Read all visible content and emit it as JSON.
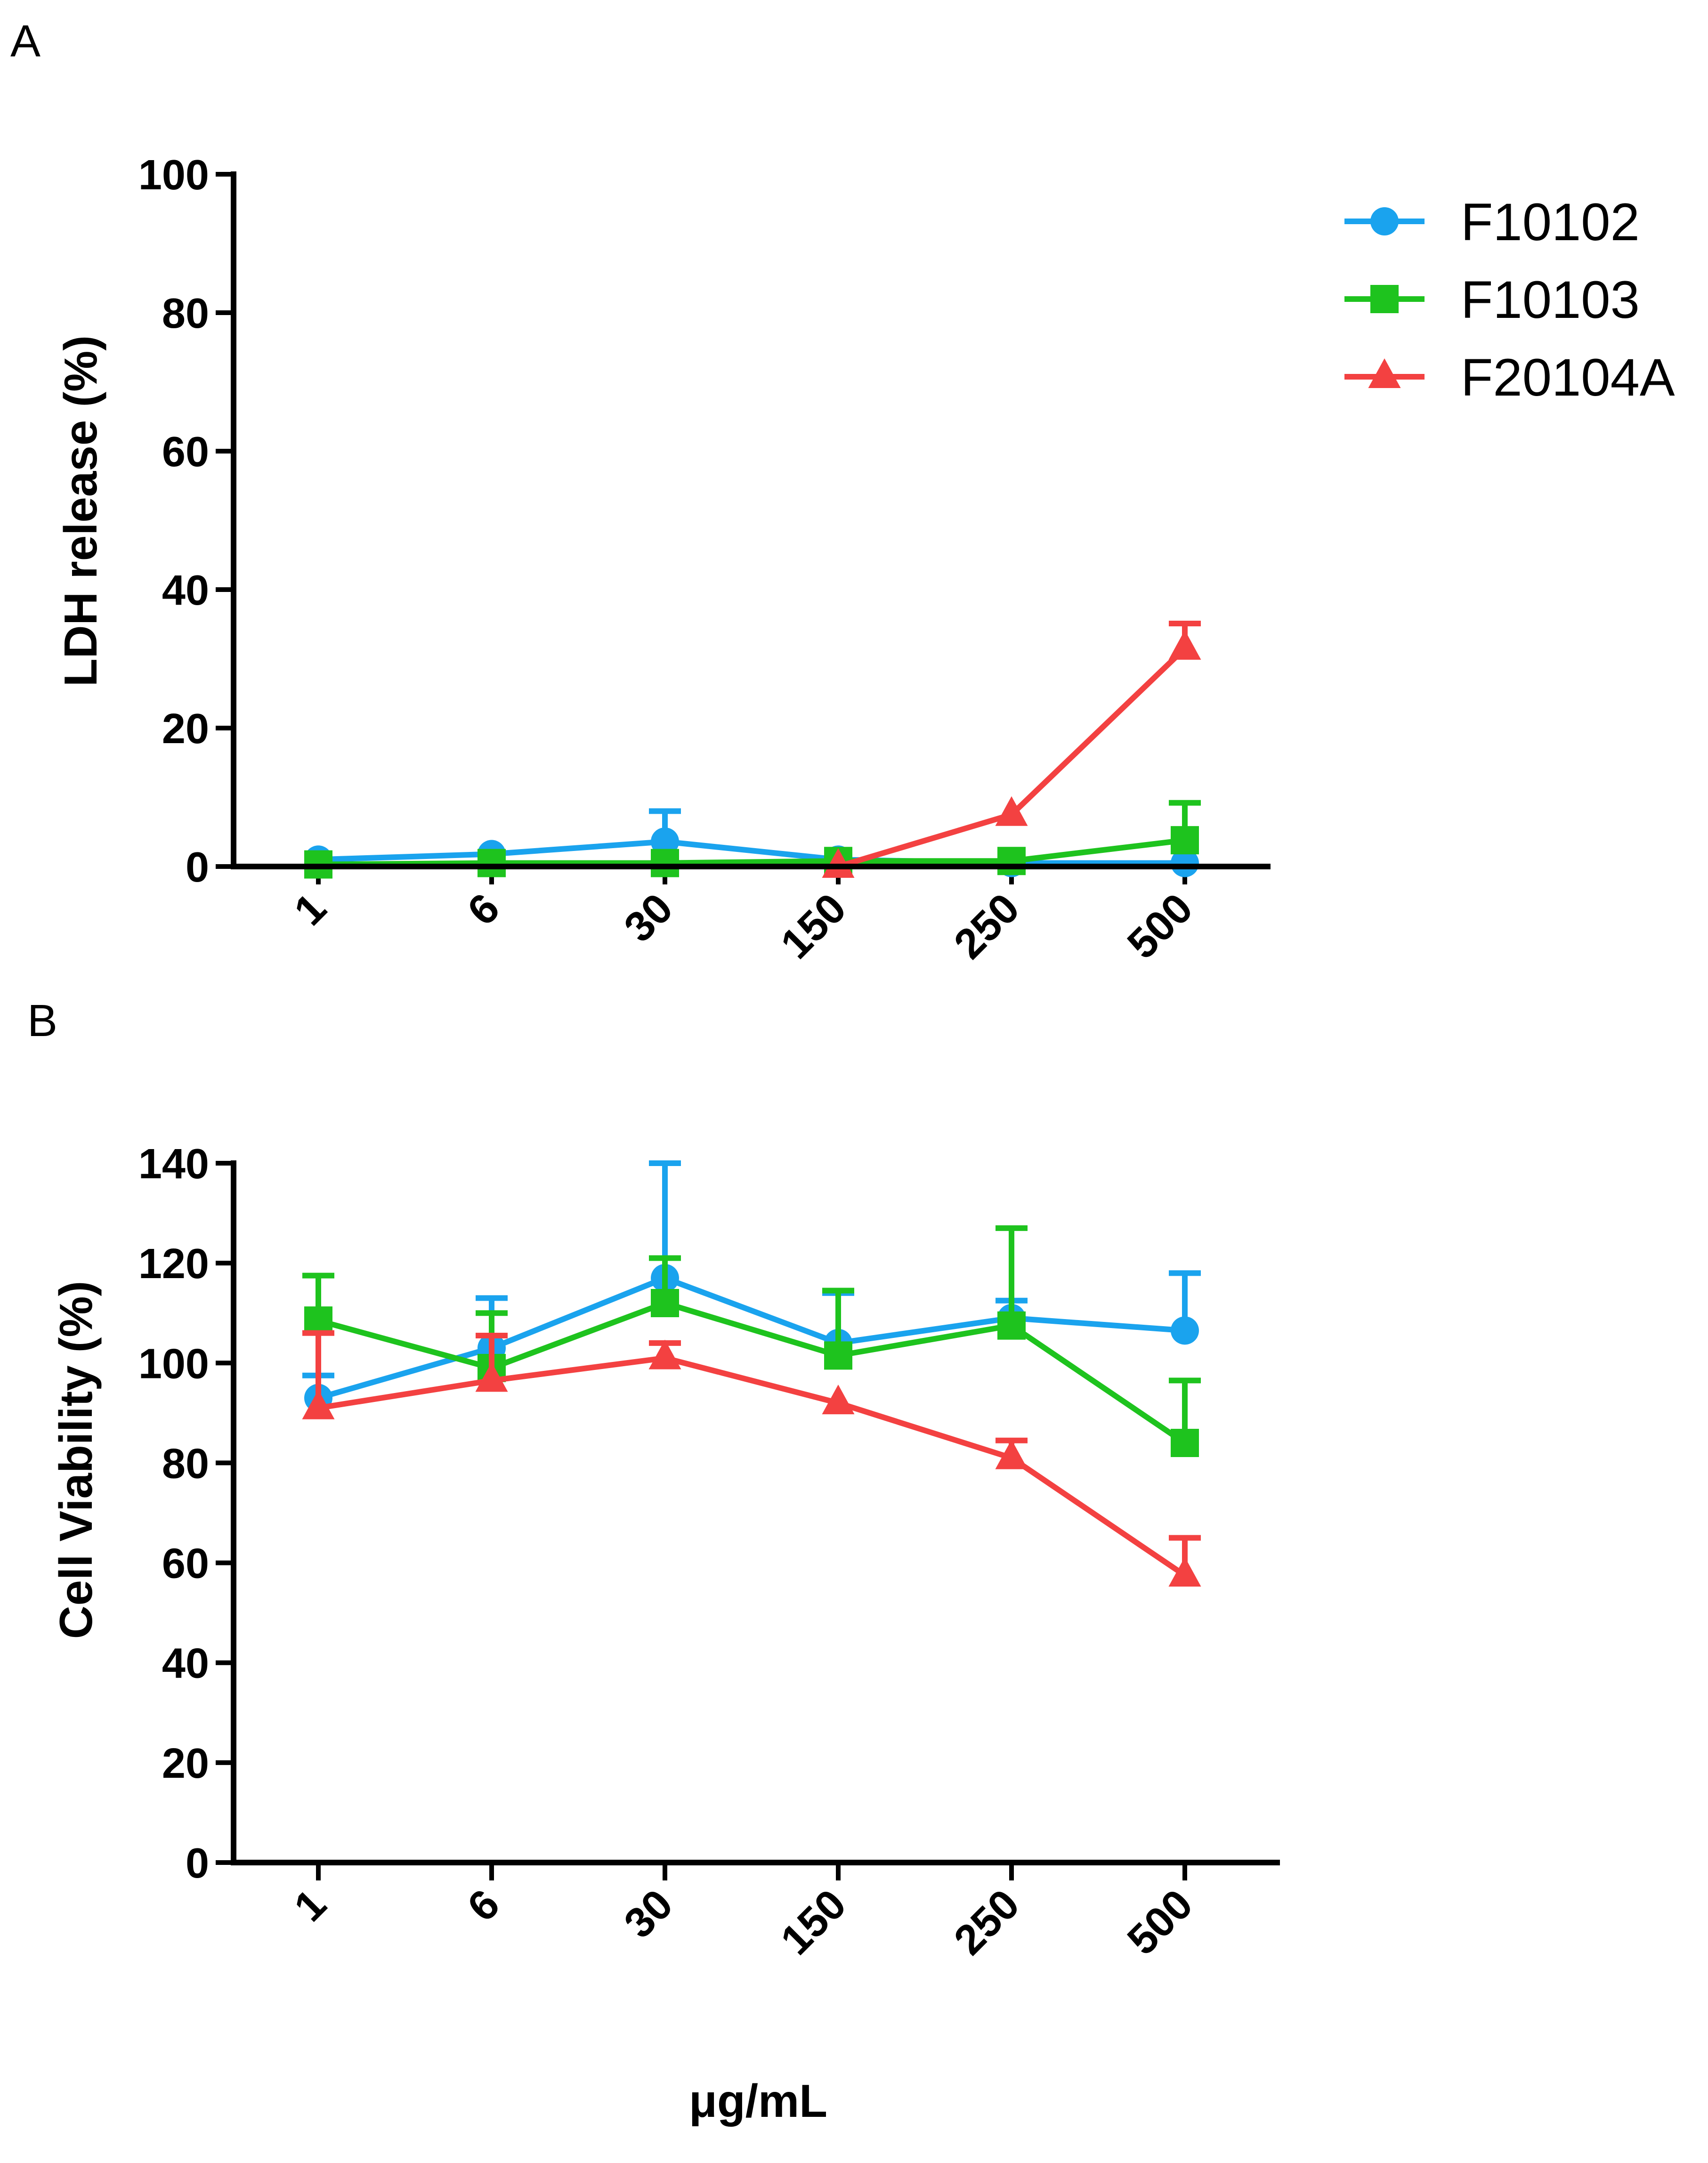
{
  "panel_labels": [
    "A",
    "B"
  ],
  "legend": [
    {
      "name": "F10102",
      "color": "#1aa3ee",
      "marker": "circle"
    },
    {
      "name": "F10103",
      "color": "#1ec31e",
      "marker": "square"
    },
    {
      "name": "F20104A",
      "color": "#f34141",
      "marker": "triangle"
    }
  ],
  "shared_xlabel": "μg/mL",
  "chart_data": [
    {
      "type": "line",
      "panel": "A",
      "categories": [
        "1",
        "6",
        "30",
        "150",
        "250",
        "500"
      ],
      "ylabel": "LDH release (%)",
      "ylim": [
        0,
        100
      ],
      "yticks": [
        "0",
        "20",
        "40",
        "60",
        "80",
        "100"
      ],
      "series": [
        {
          "name": "F10102",
          "color": "#1aa3ee",
          "marker": "circle",
          "values": [
            1,
            1.8,
            3.6,
            1,
            0.5,
            0.5
          ],
          "err": [
            0,
            0,
            4.4,
            0,
            0,
            0
          ]
        },
        {
          "name": "F10103",
          "color": "#1ec31e",
          "marker": "square",
          "values": [
            0.3,
            0.5,
            0.5,
            0.8,
            0.8,
            3.8
          ],
          "err": [
            0,
            0,
            0,
            0,
            0,
            5.4
          ]
        },
        {
          "name": "F20104A",
          "color": "#f34141",
          "marker": "triangle",
          "values": [
            null,
            null,
            null,
            0,
            7.5,
            31.5
          ],
          "err": [
            null,
            null,
            null,
            0,
            0,
            3.6
          ]
        }
      ]
    },
    {
      "type": "line",
      "panel": "B",
      "categories": [
        "1",
        "6",
        "30",
        "150",
        "250",
        "500"
      ],
      "ylabel": "Cell Viability (%)",
      "ylim": [
        0,
        140
      ],
      "yticks": [
        "0",
        "20",
        "40",
        "60",
        "80",
        "100",
        "120",
        "140"
      ],
      "series": [
        {
          "name": "F10102",
          "color": "#1aa3ee",
          "marker": "circle",
          "values": [
            93,
            103,
            117,
            104,
            109,
            106.5
          ],
          "err": [
            4.5,
            10,
            23,
            10,
            3.5,
            11.5
          ]
        },
        {
          "name": "F10103",
          "color": "#1ec31e",
          "marker": "square",
          "values": [
            108.5,
            99,
            112,
            101.5,
            107.5,
            84
          ],
          "err": [
            9,
            11,
            9,
            13,
            19.5,
            12.5
          ]
        },
        {
          "name": "F20104A",
          "color": "#f34141",
          "marker": "triangle",
          "values": [
            91,
            96.5,
            101,
            92,
            81,
            57.5
          ],
          "err": [
            15,
            9,
            3,
            0,
            3.5,
            7.5
          ]
        }
      ]
    }
  ]
}
